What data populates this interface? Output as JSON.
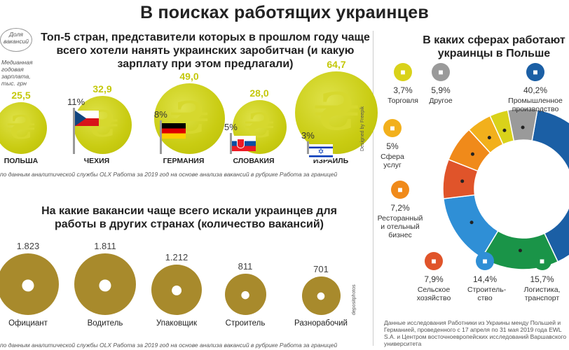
{
  "title": "В поисках работящих украинцев",
  "salary_section": {
    "heading": "Топ-5 стран, представители которых в прошлом году чаще всего хотели нанять украинских заробитчан (и какую зарплату при этом предлагали)",
    "legend_share": "Доля вакансий",
    "legend_salary": "Медианная годовая зарплата, тыс. грн",
    "source": "по данным аналитической службы OLX Работа за 2019 год на основе анализа вакансий в рубрике Работа за границей",
    "credit": "Designed by Freepik",
    "currency_symbol": "₴"
  },
  "jobs_section": {
    "heading": "На какие вакансии чаще всего искали украинцев для работы в других странах (количество вакансий)",
    "source": "по данным аналитической службы OLX Работа за 2019 год на основе анализа вакансий в рубрике Работа за границей",
    "credit": "depositphotos"
  },
  "sectors_section": {
    "heading": "В каких сферах работают украинцы в Польше",
    "source": "Данные исследования Работники из Украины менду Польшей и Германией, проведенного с 17 апреля по 31 мая 2019 года EWL S.A. и Центром восточноевропейских исследований Варшавского университета"
  },
  "chart_data": [
    {
      "type": "bar",
      "title": "Топ-5 стран, представители которых в прошлом году чаще всего хотели нанять украинских заробитчан (и какую зарплату при этом предлагали)",
      "categories": [
        "ПОЛЬША",
        "ЧЕХИЯ",
        "ГЕРМАНИЯ",
        "СЛОВАКИЯ",
        "ИЗРАИЛЬ"
      ],
      "series": [
        {
          "name": "Доля вакансий",
          "values": [
            null,
            11,
            8,
            5,
            3
          ],
          "labels": [
            "",
            "11%",
            "8%",
            "5%",
            "3%"
          ]
        },
        {
          "name": "Медианная годовая зарплата, тыс. грн",
          "values": [
            25.5,
            32.9,
            49.0,
            28.0,
            64.7
          ],
          "labels": [
            "25,5",
            "32,9",
            "49,0",
            "28,0",
            "64,7"
          ]
        }
      ]
    },
    {
      "type": "bar",
      "title": "На какие вакансии чаще всего искали украинцев для работы в других странах (количество вакансий)",
      "categories": [
        "Официант",
        "Водитель",
        "Упаковщик",
        "Строитель",
        "Разнорабочий"
      ],
      "values": [
        1823,
        1811,
        1212,
        811,
        701
      ],
      "labels": [
        "1.823",
        "1.811",
        "1.212",
        "811",
        "701"
      ]
    },
    {
      "type": "pie",
      "title": "В каких сферах работают украинцы в Польше",
      "slices": [
        {
          "label": "Промышленное производство",
          "value": 40.2,
          "pct": "40,2%",
          "color": "#1b5fa5"
        },
        {
          "label": "Логистика, транспорт",
          "value": 15.7,
          "pct": "15,7%",
          "color": "#1a9448"
        },
        {
          "label": "Строительство",
          "value": 14.4,
          "pct": "14,4%",
          "color": "#2f8fd6"
        },
        {
          "label": "Сельское хозяйство",
          "value": 7.9,
          "pct": "7,9%",
          "color": "#e0542a"
        },
        {
          "label": "Ресторанный и отельный бизнес",
          "value": 7.2,
          "pct": "7,2%",
          "color": "#f08a1a"
        },
        {
          "label": "Сфера услуг",
          "value": 5.0,
          "pct": "5%",
          "color": "#f2b01c"
        },
        {
          "label": "Торговля",
          "value": 3.7,
          "pct": "3,7%",
          "color": "#d9d21a"
        },
        {
          "label": "Другое",
          "value": 5.9,
          "pct": "5,9%",
          "color": "#9a9a9a"
        }
      ]
    }
  ],
  "labels_display": {
    "countries": [
      "ПОЛЬША",
      "ЧЕХИЯ",
      "ГЕРМАНИЯ",
      "СЛОВАКИЯ",
      "ИЗРАИЛЬ"
    ],
    "shares": [
      "",
      "11%",
      "8%",
      "5%",
      "3%"
    ],
    "salaries": [
      "25,5",
      "32,9",
      "49,0",
      "28,0",
      "64,7"
    ],
    "jobs": [
      "Официант",
      "Водитель",
      "Упаковщик",
      "Строитель",
      "Разнорабочий"
    ],
    "job_counts": [
      "1.823",
      "1.811",
      "1.212",
      "811",
      "701"
    ],
    "sector_top": [
      {
        "pct": "3,7%",
        "label": "Торговля"
      },
      {
        "pct": "5,9%",
        "label": "Другое"
      },
      {
        "pct": "40,2%",
        "label": "Промышленное производство"
      }
    ],
    "sector_left": [
      {
        "pct": "5%",
        "label": "Сфера услуг"
      },
      {
        "pct": "7,2%",
        "label": "Ресторанный и отельный бизнес"
      }
    ],
    "sector_bottom": [
      {
        "pct": "7,9%",
        "label": "Сельское хозяйство"
      },
      {
        "pct": "14,4%",
        "label": "Строитель-ство"
      },
      {
        "pct": "15,7%",
        "label": "Логистика, транспорт"
      }
    ]
  }
}
